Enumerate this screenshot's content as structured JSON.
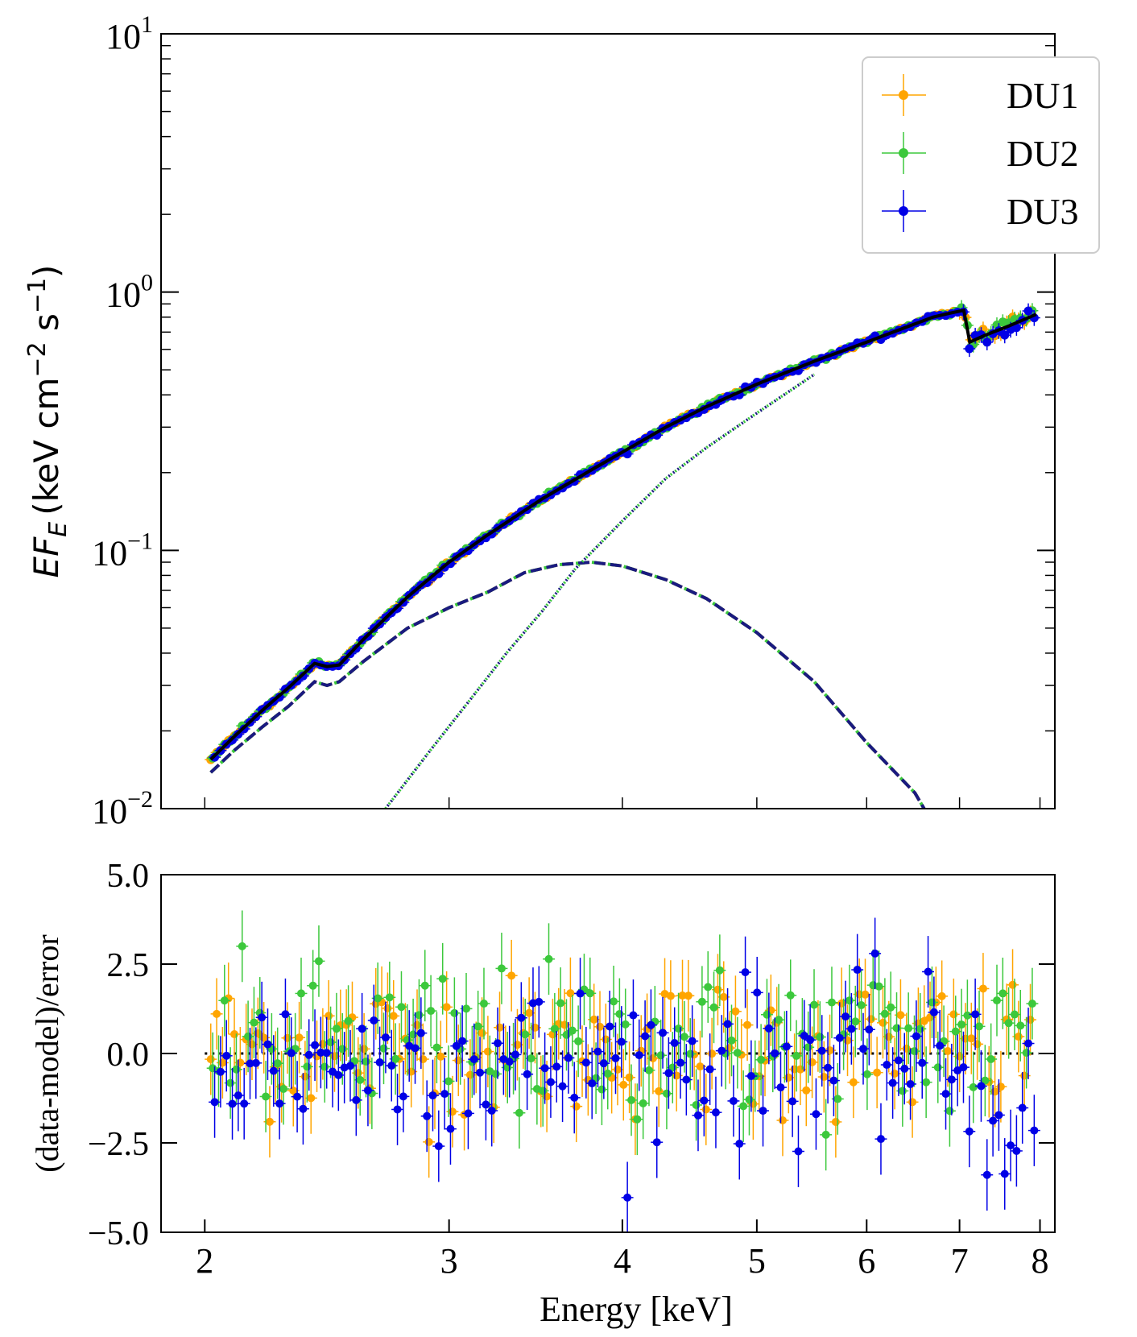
{
  "chart_data": [
    {
      "panel": "spectrum",
      "type": "scatter",
      "xlabel": "",
      "ylabel_parts": {
        "e": "EF",
        "sub": "E",
        "unit": "(keV cm",
        "exp1": "−2",
        "s": " s",
        "exp2": "−1",
        "close": ")"
      },
      "xscale": "log",
      "yscale": "log",
      "xlim": [
        1.86,
        8.2
      ],
      "ylim": [
        0.01,
        10
      ],
      "yticks": [
        {
          "v": 10,
          "base": "10",
          "exp": "1"
        },
        {
          "v": 1,
          "base": "10",
          "exp": "0"
        },
        {
          "v": 0.1,
          "base": "10",
          "exp": "−1"
        },
        {
          "v": 0.01,
          "base": "10",
          "exp": "−2"
        }
      ],
      "grid": false,
      "legend": {
        "placement": "upper right",
        "entries": [
          "DU1",
          "DU2",
          "DU3"
        ]
      },
      "colors": {
        "DU1": "#ffa500",
        "DU2": "#3cc83c",
        "DU3": "#0000e6",
        "model": "#000000"
      },
      "total_model": {
        "x": [
          2.02,
          2.1,
          2.2,
          2.3,
          2.4,
          2.45,
          2.5,
          2.6,
          2.8,
          3.0,
          3.2,
          3.5,
          3.8,
          4.0,
          4.3,
          4.6,
          5.0,
          5.5,
          6.0,
          6.4,
          6.7,
          6.9,
          7.05,
          7.12,
          7.3,
          7.6,
          7.95
        ],
        "y": [
          0.0155,
          0.019,
          0.024,
          0.0295,
          0.0365,
          0.0355,
          0.036,
          0.045,
          0.066,
          0.09,
          0.115,
          0.158,
          0.205,
          0.24,
          0.3,
          0.36,
          0.44,
          0.54,
          0.64,
          0.73,
          0.8,
          0.83,
          0.85,
          0.64,
          0.68,
          0.74,
          0.82
        ]
      },
      "disk_component": {
        "x": [
          2.02,
          2.1,
          2.2,
          2.3,
          2.4,
          2.45,
          2.5,
          2.6,
          2.8,
          3.0,
          3.2,
          3.4,
          3.6,
          3.8,
          4.0,
          4.3,
          4.6,
          5.0,
          5.5,
          6.0,
          6.5,
          6.6
        ],
        "y": [
          0.0138,
          0.0168,
          0.0207,
          0.025,
          0.031,
          0.03,
          0.031,
          0.037,
          0.05,
          0.06,
          0.069,
          0.082,
          0.088,
          0.09,
          0.087,
          0.077,
          0.065,
          0.048,
          0.031,
          0.018,
          0.0115,
          0.01
        ]
      },
      "comptonized_component": {
        "x": [
          2.7,
          2.9,
          3.1,
          3.3,
          3.5,
          3.7,
          4.0,
          4.3,
          4.6,
          5.0,
          5.5
        ],
        "y": [
          0.01,
          0.0165,
          0.026,
          0.04,
          0.058,
          0.085,
          0.13,
          0.19,
          0.25,
          0.34,
          0.48
        ]
      }
    },
    {
      "panel": "residuals",
      "type": "scatter",
      "xlabel": "Energy [keV]",
      "ylabel": "(data-model)/error",
      "xscale": "log",
      "xlim": [
        1.86,
        8.2
      ],
      "ylim": [
        -5.0,
        5.0
      ],
      "xticks": [
        2,
        3,
        4,
        5,
        6,
        7,
        8
      ],
      "yticks": [
        "−5.0",
        "−2.5",
        "0.0",
        "2.5",
        "5.0"
      ],
      "zero_line": 0.0,
      "grid": false
    }
  ]
}
